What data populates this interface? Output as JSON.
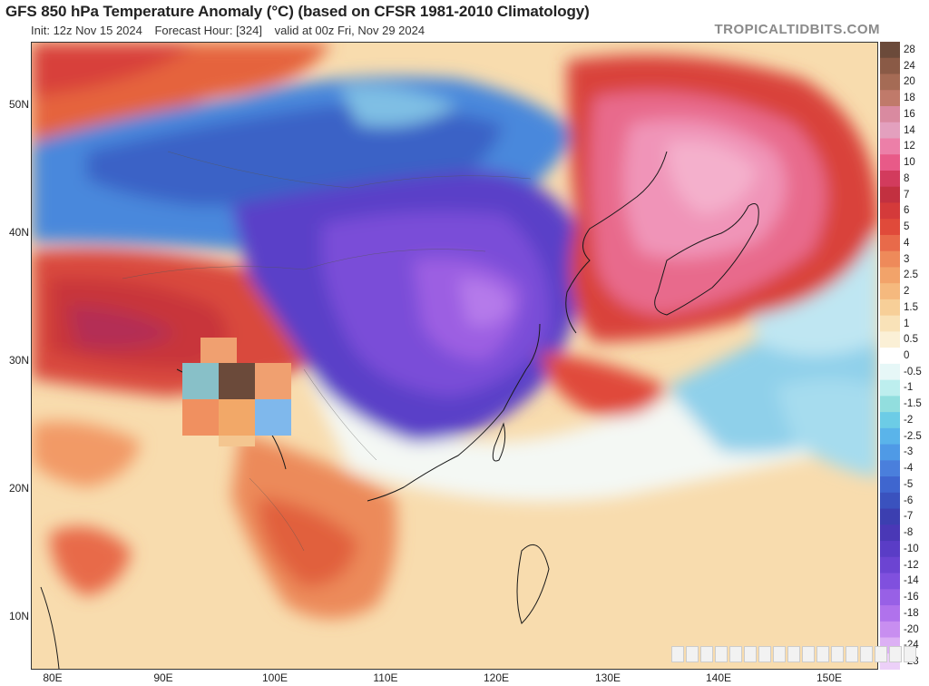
{
  "header": {
    "title": "GFS 850 hPa Temperature Anomaly (°C) (based on CFSR 1981-2010 Climatology)",
    "init": "Init: 12z Nov 15 2024",
    "forecast_hour": "Forecast Hour: [324]",
    "valid": "valid at 00z Fri, Nov 29 2024"
  },
  "watermark": "TROPICALTIDBITS.COM",
  "latitude_labels": [
    "50N",
    "40N",
    "30N",
    "20N",
    "10N"
  ],
  "longitude_labels": [
    "80E",
    "90E",
    "100E",
    "110E",
    "120E",
    "130E",
    "140E",
    "150E"
  ],
  "colorbar": {
    "labels": [
      "28",
      "24",
      "20",
      "18",
      "16",
      "14",
      "12",
      "10",
      "8",
      "7",
      "6",
      "5",
      "4",
      "3",
      "2.5",
      "2",
      "1.5",
      "1",
      "0.5",
      "0",
      "-0.5",
      "-1",
      "-1.5",
      "-2",
      "-2.5",
      "-3",
      "-4",
      "-5",
      "-6",
      "-7",
      "-8",
      "-10",
      "-12",
      "-14",
      "-16",
      "-18",
      "-20",
      "-24",
      "-28"
    ],
    "colors": [
      "#6b4a3a",
      "#8a5a46",
      "#a56b55",
      "#c07a6a",
      "#d98aa0",
      "#e3a0be",
      "#ec7fa8",
      "#e85a88",
      "#d23b5d",
      "#c23040",
      "#d43a3a",
      "#e04a3a",
      "#e86a4a",
      "#ee8a5a",
      "#f2a36a",
      "#f5b97e",
      "#f7cf98",
      "#f9e2b8",
      "#fbf0d6",
      "#ffffff",
      "#e6f7f7",
      "#bdeeee",
      "#92dede",
      "#6ccce6",
      "#5ab4ea",
      "#4f9ae6",
      "#4a7fdc",
      "#3f66cf",
      "#3a52be",
      "#3c3fb0",
      "#4a38b6",
      "#5a3dc6",
      "#6c44d2",
      "#8050de",
      "#9860e6",
      "#b072ec",
      "#c88ef0",
      "#dcb0f4",
      "#ecd0f8"
    ]
  }
}
